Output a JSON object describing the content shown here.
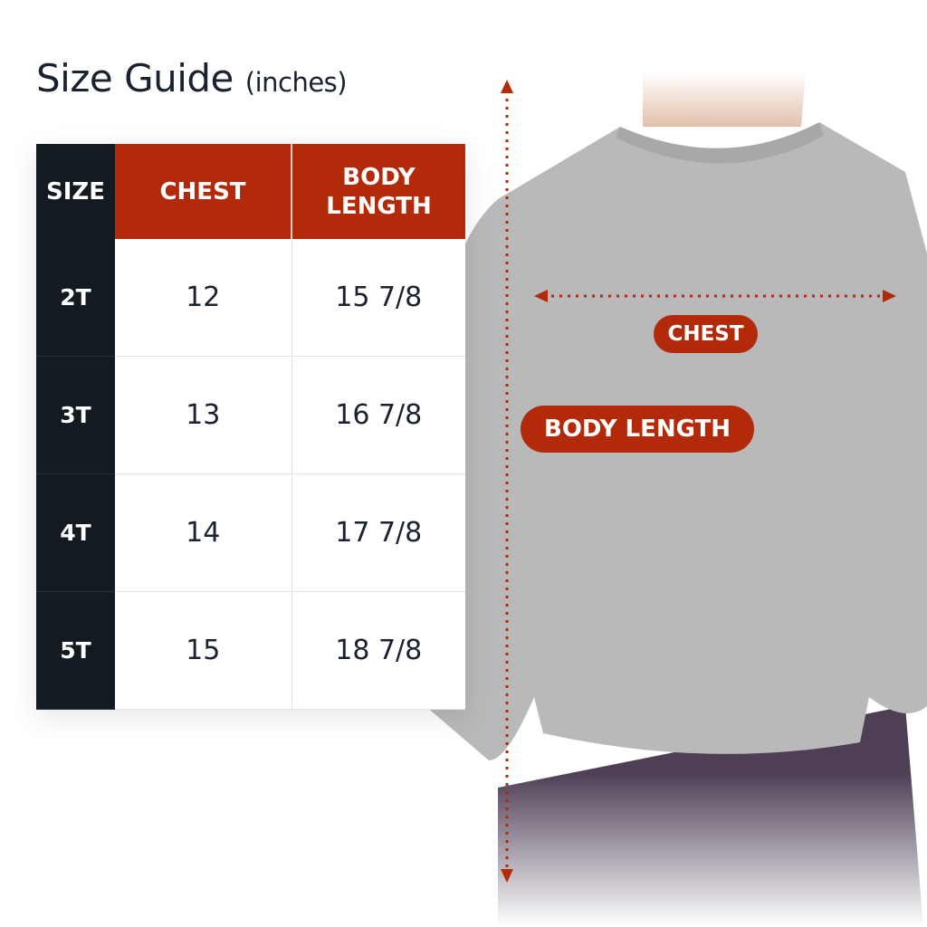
{
  "title": {
    "main": "Size Guide",
    "unit": "(inches)"
  },
  "table": {
    "headers": {
      "size": "SIZE",
      "chest": "CHEST",
      "body_length_1": "BODY",
      "body_length_2": "LENGTH"
    },
    "rows": [
      {
        "size": "2T",
        "chest": "12",
        "length": "15 7/8"
      },
      {
        "size": "3T",
        "chest": "13",
        "length": "16 7/8"
      },
      {
        "size": "4T",
        "chest": "14",
        "length": "17 7/8"
      },
      {
        "size": "5T",
        "chest": "15",
        "length": "18 7/8"
      }
    ]
  },
  "labels": {
    "chest": "CHEST",
    "body_length": "BODY LENGTH"
  },
  "colors": {
    "accent": "#b22a0a",
    "dark": "#141a22",
    "shirt": "#b8b8b8",
    "pants": "#4e3f55"
  }
}
